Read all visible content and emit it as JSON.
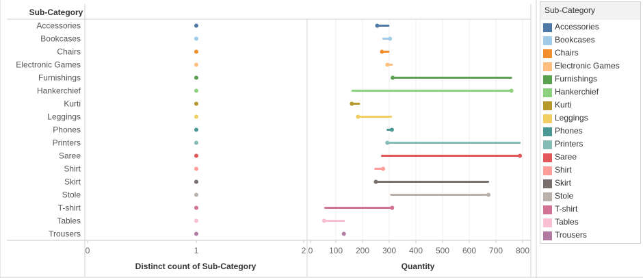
{
  "chart_data": [
    {
      "type": "scatter",
      "row_header": "Sub-Category",
      "xlabel": "Distinct count of Sub-Category",
      "xlim": [
        0,
        2
      ],
      "tick_labels": [
        "0",
        "1",
        "2"
      ],
      "categories": [
        "Accessories",
        "Bookcases",
        "Chairs",
        "Electronic Games",
        "Furnishings",
        "Hankerchief",
        "Kurti",
        "Leggings",
        "Phones",
        "Printers",
        "Saree",
        "Shirt",
        "Skirt",
        "Stole",
        "T-shirt",
        "Tables",
        "Trousers"
      ],
      "values": [
        1,
        1,
        1,
        1,
        1,
        1,
        1,
        1,
        1,
        1,
        1,
        1,
        1,
        1,
        1,
        1,
        1
      ]
    },
    {
      "type": "dumbbell",
      "xlabel": "Quantity",
      "xlim": [
        0,
        820
      ],
      "tick_labels": [
        "0",
        "100",
        "200",
        "300",
        "400",
        "500",
        "600",
        "700",
        "800"
      ],
      "categories": [
        "Accessories",
        "Bookcases",
        "Chairs",
        "Electronic Games",
        "Furnishings",
        "Hankerchief",
        "Kurti",
        "Leggings",
        "Phones",
        "Printers",
        "Saree",
        "Shirt",
        "Skirt",
        "Stole",
        "T-shirt",
        "Tables",
        "Trousers"
      ],
      "ranges": [
        {
          "low": 255,
          "high": 297,
          "marker": "low"
        },
        {
          "low": 278,
          "high": 303,
          "marker": "high"
        },
        {
          "low": 273,
          "high": 297,
          "marker": "low"
        },
        {
          "low": 293,
          "high": 310,
          "marker": "low"
        },
        {
          "low": 313,
          "high": 757,
          "marker": "low"
        },
        {
          "low": 162,
          "high": 758,
          "marker": "high"
        },
        {
          "low": 160,
          "high": 187,
          "marker": "low"
        },
        {
          "low": 183,
          "high": 307,
          "marker": "low"
        },
        {
          "low": 294,
          "high": 310,
          "marker": "high"
        },
        {
          "low": 293,
          "high": 789,
          "marker": "low"
        },
        {
          "low": 273,
          "high": 790,
          "marker": "high"
        },
        {
          "low": 248,
          "high": 277,
          "marker": "high"
        },
        {
          "low": 250,
          "high": 671,
          "marker": "low"
        },
        {
          "low": 307,
          "high": 672,
          "marker": "high"
        },
        {
          "low": 60,
          "high": 311,
          "marker": "high"
        },
        {
          "low": 56,
          "high": 130,
          "marker": "low"
        },
        {
          "low": 130,
          "high": 130,
          "marker": "low"
        }
      ]
    }
  ],
  "colors": [
    "#4e79a7",
    "#a0cbe8",
    "#f28e2b",
    "#ffbe7d",
    "#59a14f",
    "#8cd17d",
    "#b6992d",
    "#f1ce63",
    "#499894",
    "#86bcb6",
    "#e15759",
    "#ff9d9a",
    "#79706e",
    "#bab0ac",
    "#d37295",
    "#fabfd2",
    "#b07aa1"
  ],
  "legend": {
    "title": "Sub-Category",
    "items": [
      "Accessories",
      "Bookcases",
      "Chairs",
      "Electronic Games",
      "Furnishings",
      "Hankerchief",
      "Kurti",
      "Leggings",
      "Phones",
      "Printers",
      "Saree",
      "Shirt",
      "Skirt",
      "Stole",
      "T-shirt",
      "Tables",
      "Trousers"
    ]
  }
}
